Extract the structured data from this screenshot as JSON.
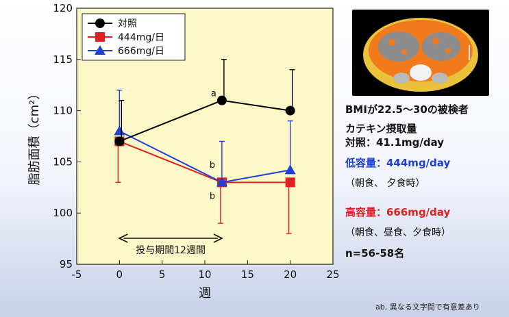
{
  "chart_data": {
    "type": "line",
    "xlabel": "週",
    "ylabel": "脂肪面積（cm²）",
    "xlim": [
      -5,
      25
    ],
    "ylim": [
      95,
      120
    ],
    "xticks": [
      "-5",
      "0",
      "5",
      "10",
      "15",
      "20",
      "25"
    ],
    "yticks": [
      "95",
      "100",
      "105",
      "110",
      "115",
      "120"
    ],
    "grid": false,
    "legend_position": "top-left",
    "series": [
      {
        "name": "対照",
        "color": "#000000",
        "marker": "circle",
        "x": [
          0,
          12,
          20
        ],
        "y": [
          107,
          111,
          110
        ],
        "err": [
          4,
          4,
          4
        ]
      },
      {
        "name": "444mg/日",
        "color": "#e02020",
        "marker": "square",
        "x": [
          0,
          12,
          20
        ],
        "y": [
          107,
          103,
          103
        ],
        "err": [
          4,
          4,
          5
        ]
      },
      {
        "name": "666mg/日",
        "color": "#1f3fd6",
        "marker": "triangle",
        "x": [
          0,
          12,
          20
        ],
        "y": [
          108,
          103,
          104.2
        ],
        "err": [
          4,
          4,
          4.8
        ]
      }
    ],
    "annotations": [
      {
        "text": "a",
        "x": 12,
        "y": 111
      },
      {
        "text": "b",
        "x": 12,
        "y": 103.5
      },
      {
        "text": "b",
        "x": 12,
        "y": 102.6
      }
    ],
    "period": {
      "label": "投与期間12週間",
      "x_start": 0,
      "x_end": 12
    }
  },
  "panel": {
    "subjects": "BMIが22.5〜30の被検者",
    "catechin_label": "カテキン摂取量",
    "control_dose": "対照：41.1mg/day",
    "low_dose": "低容量：444mg/day",
    "low_timing": "（朝食、 夕食時）",
    "high_dose": "高容量：666mg/day",
    "high_timing": "（朝食、昼食、夕食時）",
    "n": "n=56-58名"
  },
  "footnote": "ab, 異なる文字間で有意差あり",
  "colors": {
    "plot_bg": "#fbf7c6",
    "control": "#000000",
    "low": "#e02020",
    "high": "#1f3fd6"
  }
}
